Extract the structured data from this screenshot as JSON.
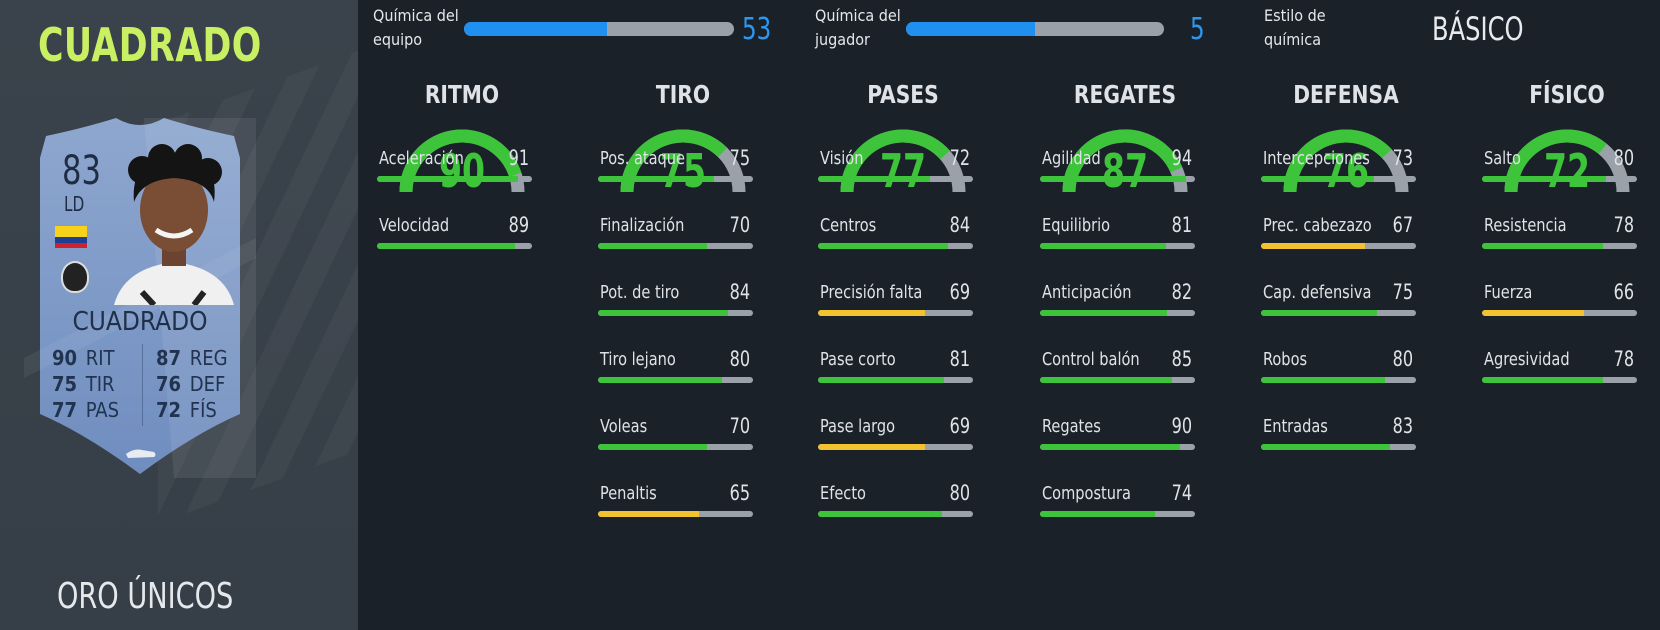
{
  "player": {
    "name_header": "CUADRADO",
    "card_type": "ORO ÚNICOS",
    "card": {
      "rating": "83",
      "position": "LD",
      "name": "CUADRADO",
      "stats": [
        {
          "value": "90",
          "label": "RIT"
        },
        {
          "value": "75",
          "label": "TIR"
        },
        {
          "value": "77",
          "label": "PAS"
        },
        {
          "value": "87",
          "label": "REG"
        },
        {
          "value": "76",
          "label": "DEF"
        },
        {
          "value": "72",
          "label": "FÍS"
        }
      ]
    }
  },
  "chemistry": {
    "team": {
      "label": "Química del equipo",
      "value": 53,
      "max": 100
    },
    "player": {
      "label": "Química del jugador",
      "value": 5,
      "max": 10
    },
    "style": {
      "label": "Estilo de química",
      "value": "BÁSICO"
    }
  },
  "colors": {
    "green": "#3ec43a",
    "yellow": "#f2c230",
    "blue": "#1f8ff0",
    "accent_name": "#c8f062"
  },
  "categories": [
    {
      "title": "RITMO",
      "value": 90,
      "stats": [
        {
          "name": "Aceleración",
          "value": 91
        },
        {
          "name": "Velocidad",
          "value": 89
        }
      ]
    },
    {
      "title": "TIRO",
      "value": 75,
      "stats": [
        {
          "name": "Pos. ataque",
          "value": 75
        },
        {
          "name": "Finalización",
          "value": 70
        },
        {
          "name": "Pot. de tiro",
          "value": 84
        },
        {
          "name": "Tiro lejano",
          "value": 80
        },
        {
          "name": "Voleas",
          "value": 70
        },
        {
          "name": "Penaltis",
          "value": 65
        }
      ]
    },
    {
      "title": "PASES",
      "value": 77,
      "stats": [
        {
          "name": "Visión",
          "value": 72
        },
        {
          "name": "Centros",
          "value": 84
        },
        {
          "name": "Precisión falta",
          "value": 69
        },
        {
          "name": "Pase corto",
          "value": 81
        },
        {
          "name": "Pase largo",
          "value": 69
        },
        {
          "name": "Efecto",
          "value": 80
        }
      ]
    },
    {
      "title": "REGATES",
      "value": 87,
      "stats": [
        {
          "name": "Agilidad",
          "value": 94
        },
        {
          "name": "Equilibrio",
          "value": 81
        },
        {
          "name": "Anticipación",
          "value": 82
        },
        {
          "name": "Control balón",
          "value": 85
        },
        {
          "name": "Regates",
          "value": 90
        },
        {
          "name": "Compostura",
          "value": 74
        }
      ]
    },
    {
      "title": "DEFENSA",
      "value": 76,
      "stats": [
        {
          "name": "Intercepciones",
          "value": 73
        },
        {
          "name": "Prec. cabezazo",
          "value": 67
        },
        {
          "name": "Cap. defensiva",
          "value": 75
        },
        {
          "name": "Robos",
          "value": 80
        },
        {
          "name": "Entradas",
          "value": 83
        }
      ]
    },
    {
      "title": "FÍSICO",
      "value": 72,
      "stats": [
        {
          "name": "Salto",
          "value": 80
        },
        {
          "name": "Resistencia",
          "value": 78
        },
        {
          "name": "Fuerza",
          "value": 66
        },
        {
          "name": "Agresividad",
          "value": 78
        }
      ]
    }
  ]
}
